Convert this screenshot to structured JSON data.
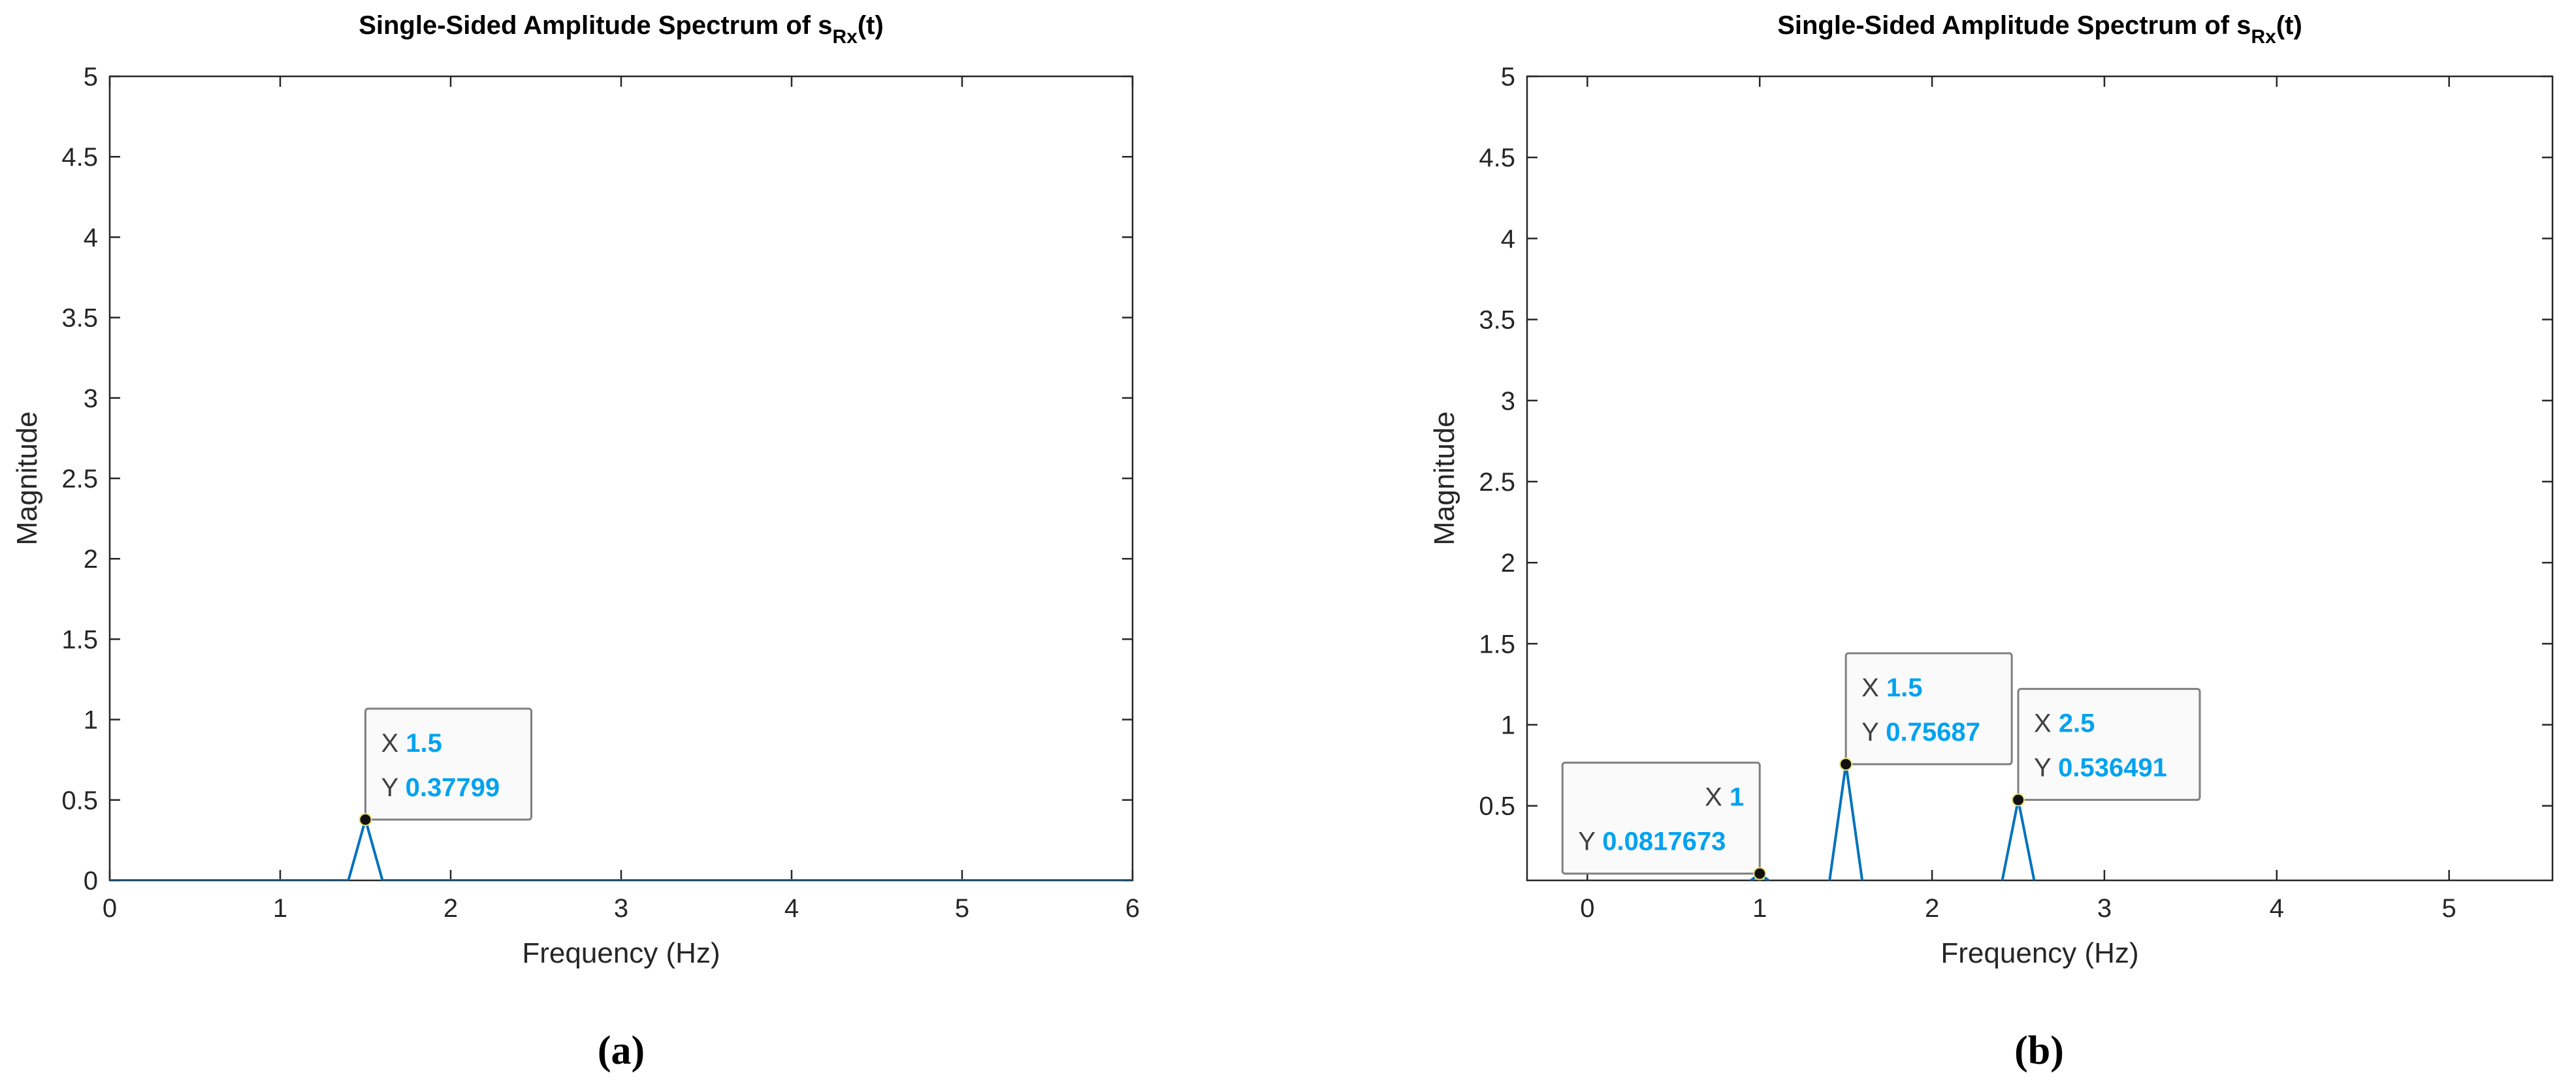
{
  "chart_data": [
    {
      "type": "line",
      "panel_label": "(a)",
      "title": "Single-Sided Amplitude Spectrum of s",
      "title_subscript": "Rx",
      "title_suffix": "(t)",
      "xlabel": "Frequency (Hz)",
      "ylabel": "Magnitude",
      "xlim": [
        0,
        6
      ],
      "ylim": [
        0,
        5
      ],
      "xticks": [
        0,
        1,
        2,
        3,
        4,
        5,
        6
      ],
      "yticks": [
        0,
        0.5,
        1,
        1.5,
        2,
        2.5,
        3,
        3.5,
        4,
        4.5,
        5
      ],
      "grid": false,
      "line_color": "#0072BD",
      "series": [
        {
          "x": [
            0,
            1.4,
            1.5,
            1.6,
            6
          ],
          "y": [
            0,
            0,
            0.37799,
            0,
            0
          ]
        }
      ],
      "datatips": [
        {
          "x": 1.5,
          "y": 0.37799,
          "x_text": "1.5",
          "y_text": "0.37799",
          "align": "right"
        }
      ]
    },
    {
      "type": "line",
      "panel_label": "(b)",
      "title": "Single-Sided Amplitude Spectrum of s",
      "title_subscript": "Rx",
      "title_suffix": "(t)",
      "xlabel": "Frequency (Hz)",
      "ylabel": "Magnitude",
      "xlim": [
        -0.35,
        5.6
      ],
      "ylim": [
        0.04,
        5
      ],
      "xticks": [
        0,
        1,
        2,
        3,
        4,
        5
      ],
      "yticks": [
        0.5,
        1,
        1.5,
        2,
        2.5,
        3,
        3.5,
        4,
        4.5,
        5
      ],
      "grid": false,
      "line_color": "#0072BD",
      "series": [
        {
          "x": [
            0.9,
            1.0,
            1.1,
            1.4,
            1.5,
            1.6,
            2.4,
            2.5,
            2.6
          ],
          "y": [
            0,
            0.0817673,
            0,
            0,
            0.75687,
            0,
            0,
            0.536491,
            0
          ]
        }
      ],
      "datatips": [
        {
          "x": 1,
          "y": 0.0817673,
          "x_text": "1",
          "y_text": "0.0817673",
          "align": "left"
        },
        {
          "x": 1.5,
          "y": 0.75687,
          "x_text": "1.5",
          "y_text": "0.75687",
          "align": "right"
        },
        {
          "x": 2.5,
          "y": 0.536491,
          "x_text": "2.5",
          "y_text": "0.536491",
          "align": "right"
        }
      ]
    }
  ],
  "datatip_style": {
    "x_prefix": "X",
    "y_prefix": "Y",
    "value_color": "#00A2F0",
    "prefix_color": "#404040"
  }
}
